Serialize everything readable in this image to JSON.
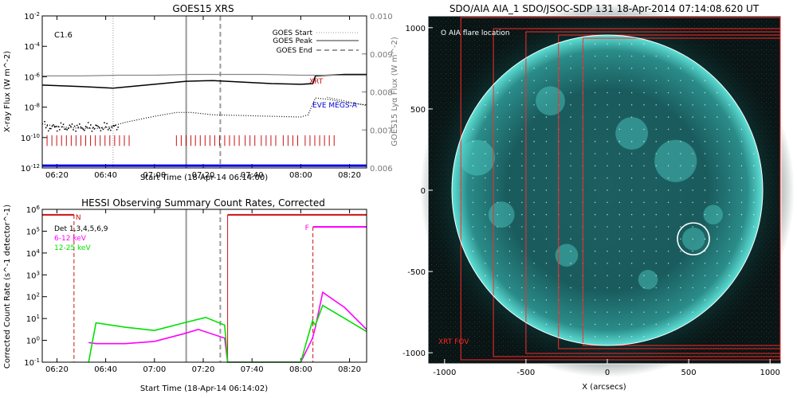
{
  "chart_data": [
    {
      "type": "line",
      "title": "GOES15 XRS",
      "xlabel": "Start Time (18-Apr-14 06:14:00)",
      "ylabel": "X-ray Flux (W m^-2)",
      "ylabel_right": "GOES15 Lyα Flux (W m^-2)",
      "flare_class": "C1.6",
      "xlim_hours": [
        6.233,
        8.45
      ],
      "ylim_log10": [
        -12,
        -2
      ],
      "ylim_right": [
        0.006,
        0.01
      ],
      "x_ticks": [
        "06:20",
        "06:40",
        "07:00",
        "07:20",
        "07:40",
        "08:00",
        "08:20"
      ],
      "y_ticks": [
        "10^-2",
        "10^-4",
        "10^-6",
        "10^-8",
        "10^-10",
        "10^-12"
      ],
      "y_ticks_right": [
        "0.010",
        "0.009",
        "0.008",
        "0.007",
        "0.006"
      ],
      "markers": {
        "goes_start": 6.717,
        "goes_peak": 7.217,
        "goes_end": 7.45
      },
      "legend": [
        "GOES Start",
        "GOES Peak",
        "GOES End"
      ],
      "annotations": {
        "xrt": "XRT",
        "eve": "EVE MEGS-A"
      },
      "series": [
        {
          "name": "GOES long channel",
          "style": "black solid",
          "x": [
            6.233,
            6.5,
            6.717,
            7.0,
            7.217,
            7.4,
            7.6,
            7.8,
            8.0,
            8.083,
            8.1,
            8.3,
            8.45
          ],
          "log_flux": [
            -6.55,
            -6.65,
            -6.75,
            -6.5,
            -6.3,
            -6.25,
            -6.35,
            -6.45,
            -6.5,
            -6.45,
            -5.95,
            -5.85,
            -5.85
          ]
        },
        {
          "name": "GOES short channel",
          "style": "gray solid",
          "x": [
            6.233,
            6.5,
            6.75,
            7.0,
            7.25,
            7.5,
            7.75,
            8.0,
            8.1,
            8.3,
            8.45
          ],
          "log_flux": [
            -5.95,
            -5.95,
            -5.9,
            -5.9,
            -5.85,
            -5.85,
            -5.85,
            -5.9,
            -5.9,
            -5.9,
            -5.9
          ]
        },
        {
          "name": "Lyman-alpha (dotted)",
          "style": "black dotted",
          "x": [
            6.233,
            6.35,
            6.5,
            6.65,
            6.8,
            7.0,
            7.15,
            7.25,
            7.4,
            7.6,
            7.8,
            8.0,
            8.05,
            8.1,
            8.2,
            8.3,
            8.45
          ],
          "log_flux": [
            -9.1,
            -9.3,
            -9.4,
            -9.4,
            -9.0,
            -8.6,
            -8.35,
            -8.35,
            -8.5,
            -8.55,
            -8.6,
            -8.65,
            -8.5,
            -7.4,
            -7.5,
            -7.7,
            -7.85
          ]
        }
      ],
      "xrt_coverage": [
        [
          6.233,
          6.85
        ],
        [
          7.15,
          7.25
        ],
        [
          7.28,
          7.45
        ],
        [
          7.48,
          7.58
        ],
        [
          7.62,
          7.7
        ],
        [
          7.73,
          7.85
        ],
        [
          7.88,
          8.0
        ],
        [
          8.03,
          8.25
        ]
      ],
      "eve_coverage": [
        [
          6.233,
          8.45
        ]
      ]
    },
    {
      "type": "line",
      "title": "HESSI Observing Summary Count Rates, Corrected",
      "xlabel": "Start Time (18-Apr-14 06:14:02)",
      "ylabel": "Corrected Count Rate (s^-1 detector^-1)",
      "xlim_hours": [
        6.233,
        8.45
      ],
      "ylim_log10": [
        -1,
        6
      ],
      "x_ticks": [
        "06:20",
        "06:40",
        "07:00",
        "07:20",
        "07:40",
        "08:00",
        "08:20"
      ],
      "y_ticks": [
        "10^6",
        "10^5",
        "10^4",
        "10^3",
        "10^2",
        "10^1",
        "10^0",
        "10^-1"
      ],
      "legend": {
        "detectors": "Det 1,3,4,5,6,9",
        "low_band": "6-12 keV",
        "high_band": "12-25 keV"
      },
      "markers": {
        "goes_peak": 7.217,
        "goes_end": 7.45
      },
      "states": {
        "night_label": "N",
        "flare_label": "F",
        "night_start": 6.45,
        "night_end": 7.5,
        "flare_start": 8.083
      },
      "series": [
        {
          "name": "6-12 keV",
          "x": [
            6.55,
            6.6,
            6.8,
            7.0,
            7.2,
            7.3,
            7.48,
            7.5,
            8.0,
            8.08,
            8.1,
            8.15,
            8.3,
            8.45
          ],
          "log_rate": [
            -0.1,
            -0.15,
            -0.15,
            -0.05,
            0.3,
            0.5,
            0.1,
            -1.0,
            -1.0,
            0.1,
            0.6,
            2.2,
            1.5,
            0.5
          ]
        },
        {
          "name": "12-25 keV",
          "x": [
            6.55,
            6.6,
            6.8,
            7.0,
            7.2,
            7.35,
            7.48,
            7.5,
            8.0,
            8.08,
            8.1,
            8.15,
            8.3,
            8.45
          ],
          "log_rate": [
            -1.0,
            0.8,
            0.6,
            0.45,
            0.8,
            1.05,
            0.7,
            -1.0,
            -1.0,
            0.9,
            0.7,
            1.6,
            1.0,
            0.4
          ]
        }
      ]
    },
    {
      "type": "image",
      "title": "SDO/AIA AIA_1 SDO/JSOC-SDP 131 18-Apr-2014 07:14:08.620 UT",
      "xlabel": "X (arcsecs)",
      "xlim": [
        -1200,
        1100
      ],
      "ylim": [
        -1100,
        1100
      ],
      "x_ticks": [
        "-1000",
        "-500",
        "0",
        "500",
        "1000"
      ],
      "y_ticks": [
        "1000",
        "500",
        "0",
        "-500",
        "-1000"
      ],
      "flare_location_label": "O AIA flare location",
      "fov_label": "XRT FOV",
      "flare_center_arcsec": [
        530,
        -300
      ],
      "solar_radius_arcsec": 955,
      "xrt_fov_left_edges_arcsec": [
        -900,
        -700,
        -500,
        -300,
        -150
      ]
    }
  ],
  "colors": {
    "xrt_red": "#cc1111",
    "eve_blue": "#0000dd",
    "magenta": "#ff00ff",
    "green": "#00e000",
    "aia_teal": "#35c6bf",
    "marker_gray": "#999999"
  }
}
